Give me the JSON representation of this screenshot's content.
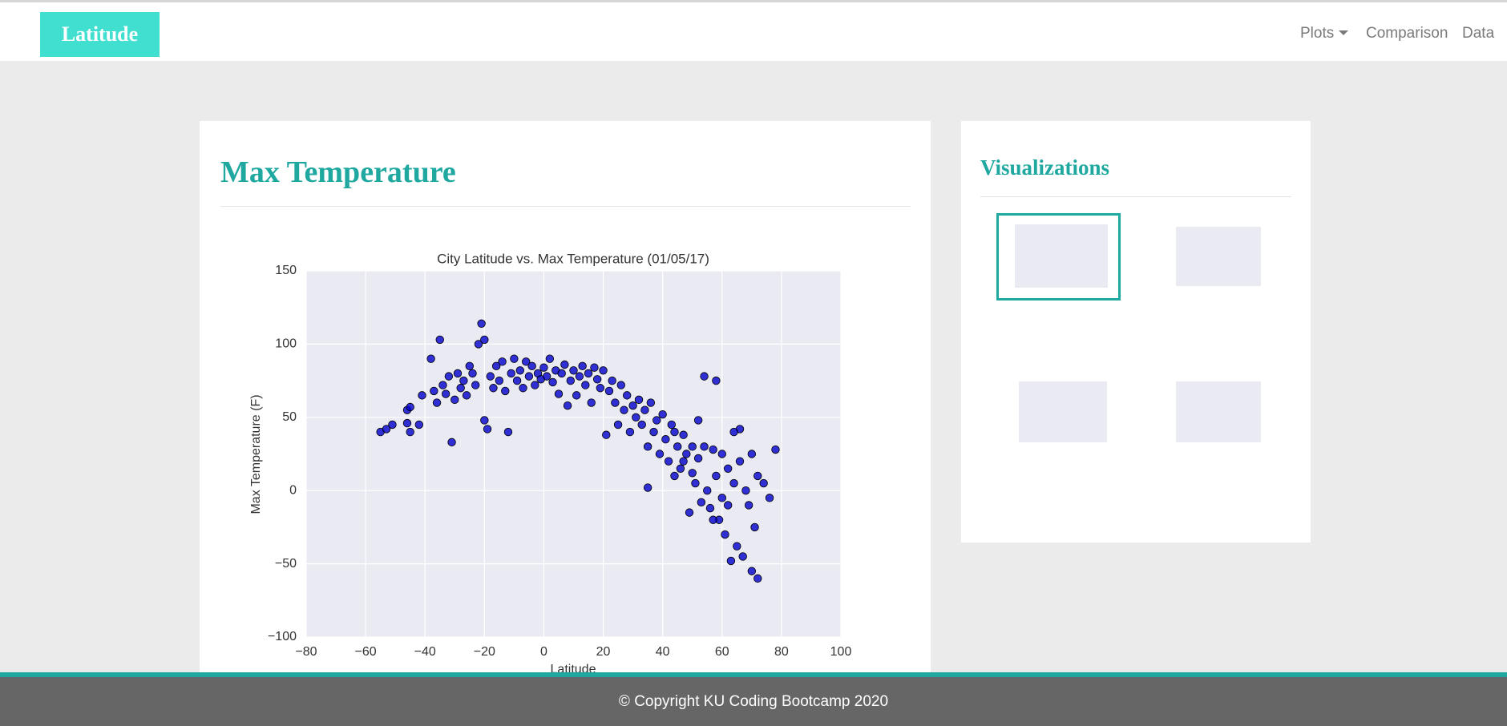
{
  "navbar": {
    "brand": "Latitude",
    "links": [
      "Plots",
      "Comparison",
      "Data"
    ]
  },
  "main": {
    "heading": "Max Temperature"
  },
  "chart_data": {
    "type": "scatter",
    "title": "City Latitude vs. Max Temperature (01/05/17)",
    "x_label": "Latitude",
    "y_label": "Max Temperature (F)",
    "color": "#0000cc",
    "edge_color": "#000000",
    "grid": true,
    "background": "#eaeaf2",
    "xlim": [
      -80,
      100
    ],
    "ylim": [
      -100,
      150
    ],
    "xticks": [
      {
        "value": -80,
        "label": "−80"
      },
      {
        "value": -60,
        "label": "−60"
      },
      {
        "value": -40,
        "label": "−40"
      },
      {
        "value": -20,
        "label": "−20"
      },
      0,
      20,
      40,
      60,
      80,
      100
    ],
    "yticks": [
      {
        "value": -100,
        "label": "−100"
      },
      {
        "value": -50,
        "label": "−50"
      },
      0,
      50,
      100,
      150
    ],
    "x": [
      -55,
      -53,
      -51,
      -46,
      -46,
      -45,
      -45,
      -42,
      -41,
      -38,
      -37,
      -36,
      -35,
      -34,
      -33,
      -32,
      -31,
      -30,
      -29,
      -28,
      -27,
      -26,
      -25,
      -24,
      -23,
      -22,
      -21,
      -20,
      -20,
      -19,
      -18,
      -17,
      -16,
      -15,
      -14,
      -13,
      -12,
      -11,
      -10,
      -9,
      -8,
      -7,
      -6,
      -5,
      -4,
      -3,
      -2,
      -1,
      0,
      1,
      2,
      3,
      4,
      5,
      6,
      7,
      8,
      9,
      10,
      11,
      12,
      13,
      14,
      15,
      16,
      17,
      18,
      19,
      20,
      21,
      22,
      23,
      24,
      25,
      26,
      27,
      28,
      29,
      30,
      31,
      32,
      33,
      34,
      35,
      36,
      37,
      38,
      39,
      40,
      41,
      42,
      43,
      44,
      45,
      46,
      47,
      48,
      49,
      50,
      51,
      52,
      53,
      54,
      54,
      55,
      56,
      57,
      58,
      58,
      59,
      60,
      61,
      62,
      63,
      64,
      65,
      66,
      67,
      68,
      69,
      70,
      70,
      71,
      72,
      72,
      74,
      76,
      78,
      66,
      64,
      52,
      47,
      44,
      35,
      60,
      57,
      50,
      62
    ],
    "y": [
      40,
      42,
      45,
      55,
      46,
      40,
      57,
      45,
      65,
      90,
      68,
      60,
      103,
      72,
      66,
      78,
      33,
      62,
      80,
      70,
      75,
      65,
      85,
      80,
      72,
      100,
      114,
      103,
      48,
      42,
      78,
      70,
      85,
      75,
      88,
      68,
      40,
      80,
      90,
      75,
      82,
      70,
      88,
      78,
      85,
      72,
      80,
      76,
      84,
      78,
      90,
      74,
      82,
      66,
      80,
      86,
      58,
      75,
      82,
      65,
      78,
      85,
      72,
      80,
      60,
      84,
      76,
      70,
      82,
      38,
      68,
      75,
      60,
      45,
      72,
      55,
      65,
      40,
      58,
      50,
      62,
      45,
      55,
      30,
      60,
      40,
      48,
      25,
      52,
      35,
      20,
      45,
      10,
      30,
      15,
      38,
      25,
      -15,
      30,
      5,
      22,
      -8,
      78,
      30,
      0,
      -12,
      28,
      75,
      10,
      -20,
      25,
      -30,
      15,
      -48,
      5,
      -38,
      20,
      -45,
      0,
      -10,
      -55,
      25,
      -25,
      -60,
      10,
      5,
      -5,
      28,
      42,
      40,
      48,
      20,
      40,
      2,
      -5,
      -20,
      12,
      -10
    ]
  },
  "sidebar": {
    "heading": "Visualizations"
  },
  "footer": {
    "text": "© Copyright KU Coding Bootcamp 2020"
  }
}
